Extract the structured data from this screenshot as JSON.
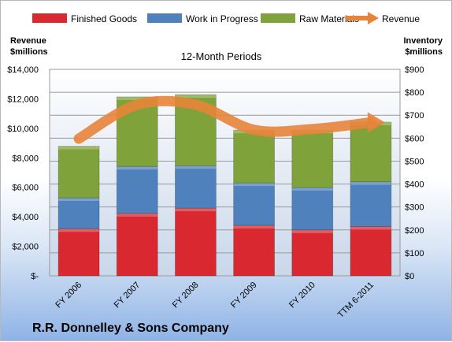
{
  "chart_data": {
    "type": "bar",
    "subtitle": "12-Month Periods",
    "company": "R.R. Donnelley & Sons Company",
    "categories": [
      "FY 2006",
      "FY 2007",
      "FY 2008",
      "FY 2009",
      "FY 2010",
      "TTM 6-2011"
    ],
    "stacked": true,
    "inventory_series": [
      {
        "name": "Finished Goods",
        "color": "#d9282f",
        "values": [
          205,
          272,
          295,
          220,
          200,
          215
        ]
      },
      {
        "name": "Work in Progress",
        "color": "#4f81bd",
        "values": [
          135,
          205,
          185,
          185,
          185,
          195
        ]
      },
      {
        "name": "Raw Materials",
        "color": "#7fa33a",
        "values": [
          225,
          303,
          310,
          230,
          250,
          260
        ]
      }
    ],
    "line_series": {
      "name": "Revenue",
      "color": "#e8843a",
      "values": [
        9300,
        11600,
        11600,
        9900,
        9950,
        10400
      ]
    },
    "y_left": {
      "label_line1": "Revenue",
      "label_line2": "$millions",
      "min": 0,
      "max": 14000,
      "step": 2000,
      "tick_labels": [
        "$-",
        "$2,000",
        "$4,000",
        "$6,000",
        "$8,000",
        "$10,000",
        "$12,000",
        "$14,000"
      ]
    },
    "y_right": {
      "label_line1": "Inventory",
      "label_line2": "$millions",
      "min": 0,
      "max": 900,
      "step": 100,
      "tick_labels": [
        "$0",
        "$100",
        "$200",
        "$300",
        "$400",
        "$500",
        "$600",
        "$700",
        "$800",
        "$900"
      ]
    },
    "legend": [
      "Finished Goods",
      "Work in Progress",
      "Raw Materials",
      "Revenue"
    ],
    "legend_position": "top",
    "grid": true
  }
}
